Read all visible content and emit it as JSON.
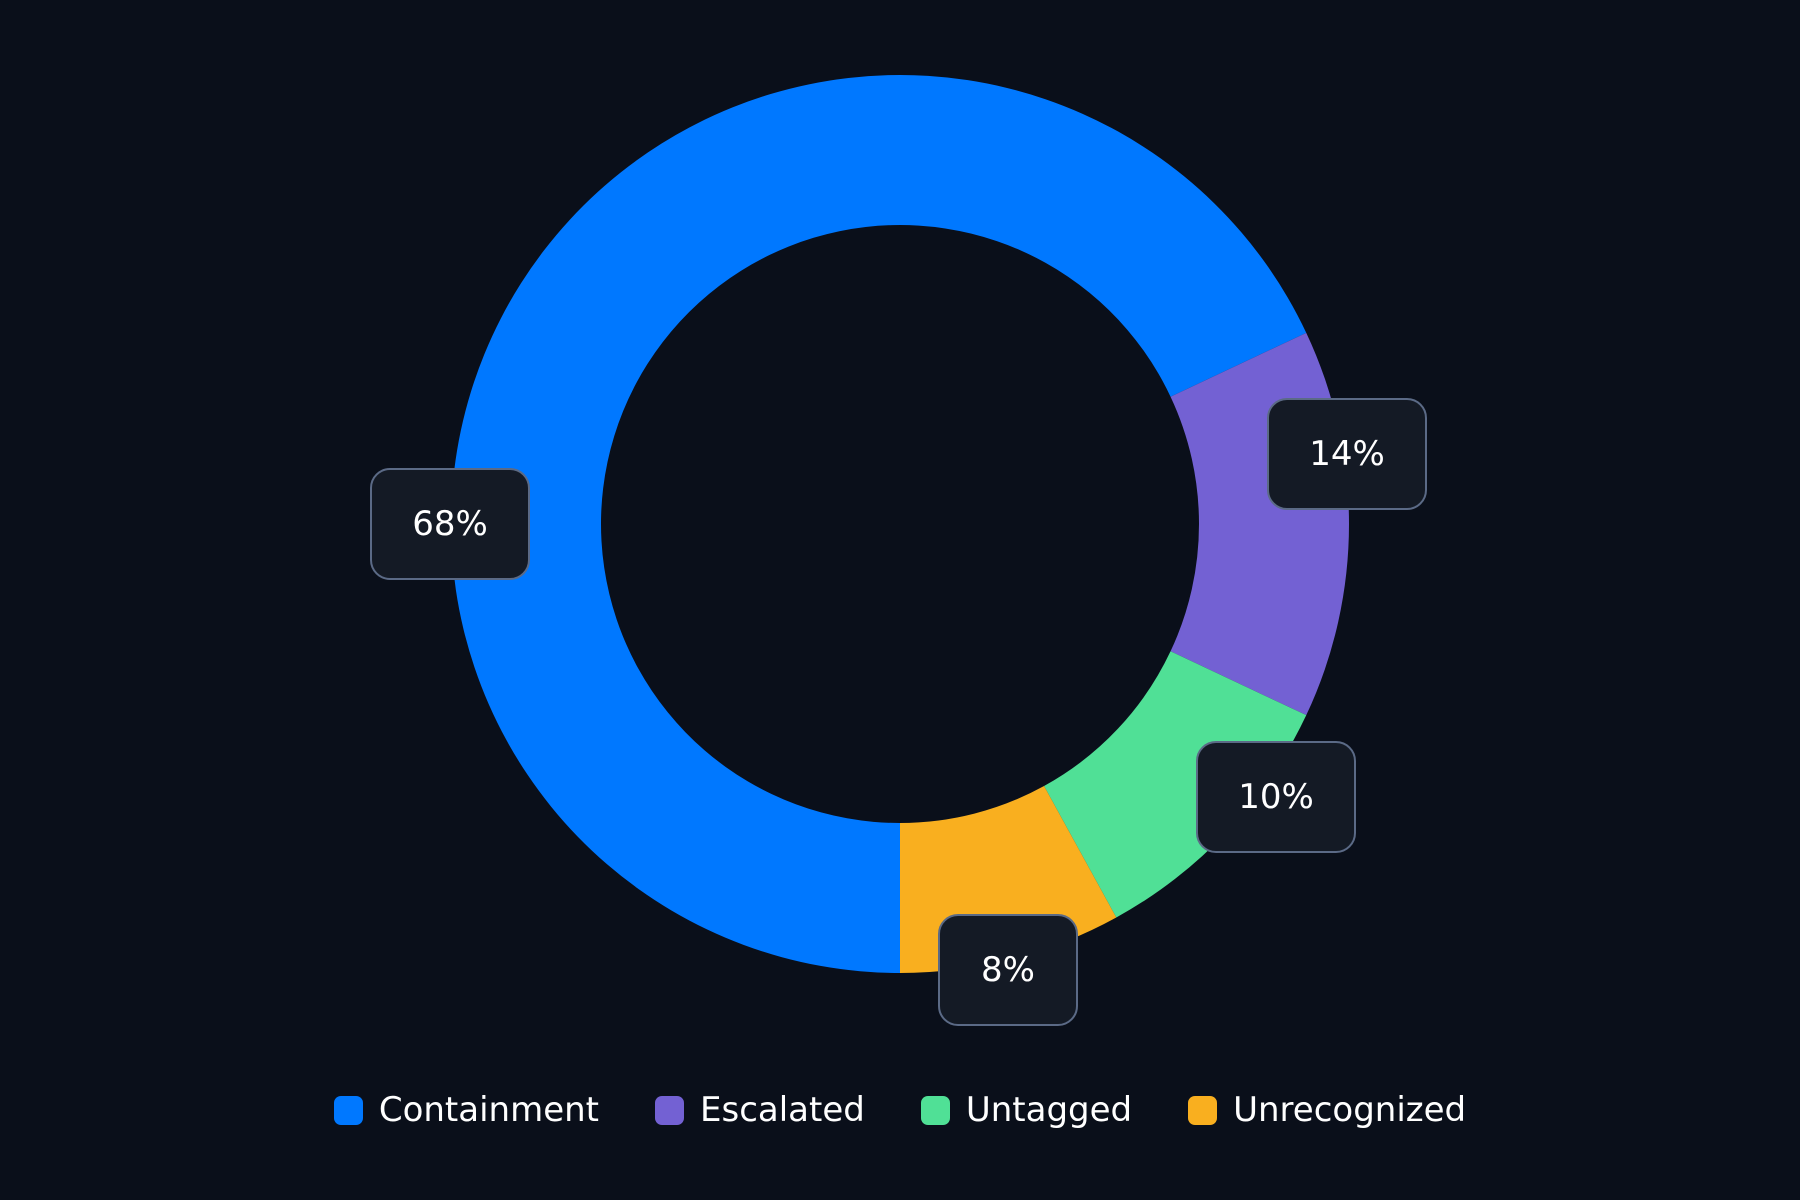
{
  "chart_data": {
    "type": "pie",
    "variant": "donut",
    "title": "",
    "categories": [
      "Containment",
      "Escalated",
      "Untagged",
      "Unrecognized"
    ],
    "values": [
      68,
      14,
      10,
      8
    ],
    "value_labels": [
      "68%",
      "14%",
      "10%",
      "8%"
    ],
    "colors": [
      "#0078ff",
      "#7361d3",
      "#50e096",
      "#f9af1f"
    ],
    "start_angle_deg": 180,
    "direction": "clockwise",
    "legend_position": "bottom"
  },
  "labels": {
    "containment": "68%",
    "escalated": "14%",
    "untagged": "10%",
    "unrecognized": "8%"
  },
  "legend": [
    {
      "label": "Containment",
      "color": "#0078ff"
    },
    {
      "label": "Escalated",
      "color": "#7361d3"
    },
    {
      "label": "Untagged",
      "color": "#50e096"
    },
    {
      "label": "Unrecognized",
      "color": "#f9af1f"
    }
  ]
}
